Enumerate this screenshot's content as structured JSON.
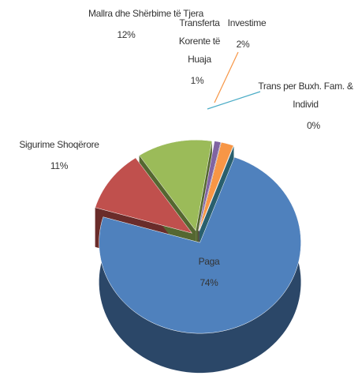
{
  "chart_data": {
    "type": "pie3d",
    "categories": [
      "Paga",
      "Sigurime Shoqërore",
      "Mallra dhe Shërbime të Tjera",
      "Transferta Korente të Huaja",
      "Investime",
      "Trans per Buxh. Fam. & Individ"
    ],
    "values": [
      74,
      11,
      12,
      1,
      2,
      0
    ],
    "value_labels": [
      "74%",
      "11%",
      "12%",
      "1%",
      "2%",
      "0%"
    ],
    "colors": [
      "#4f81bd",
      "#c0504d",
      "#9bbb59",
      "#8064a2",
      "#f79646",
      "#4bacc6"
    ]
  }
}
